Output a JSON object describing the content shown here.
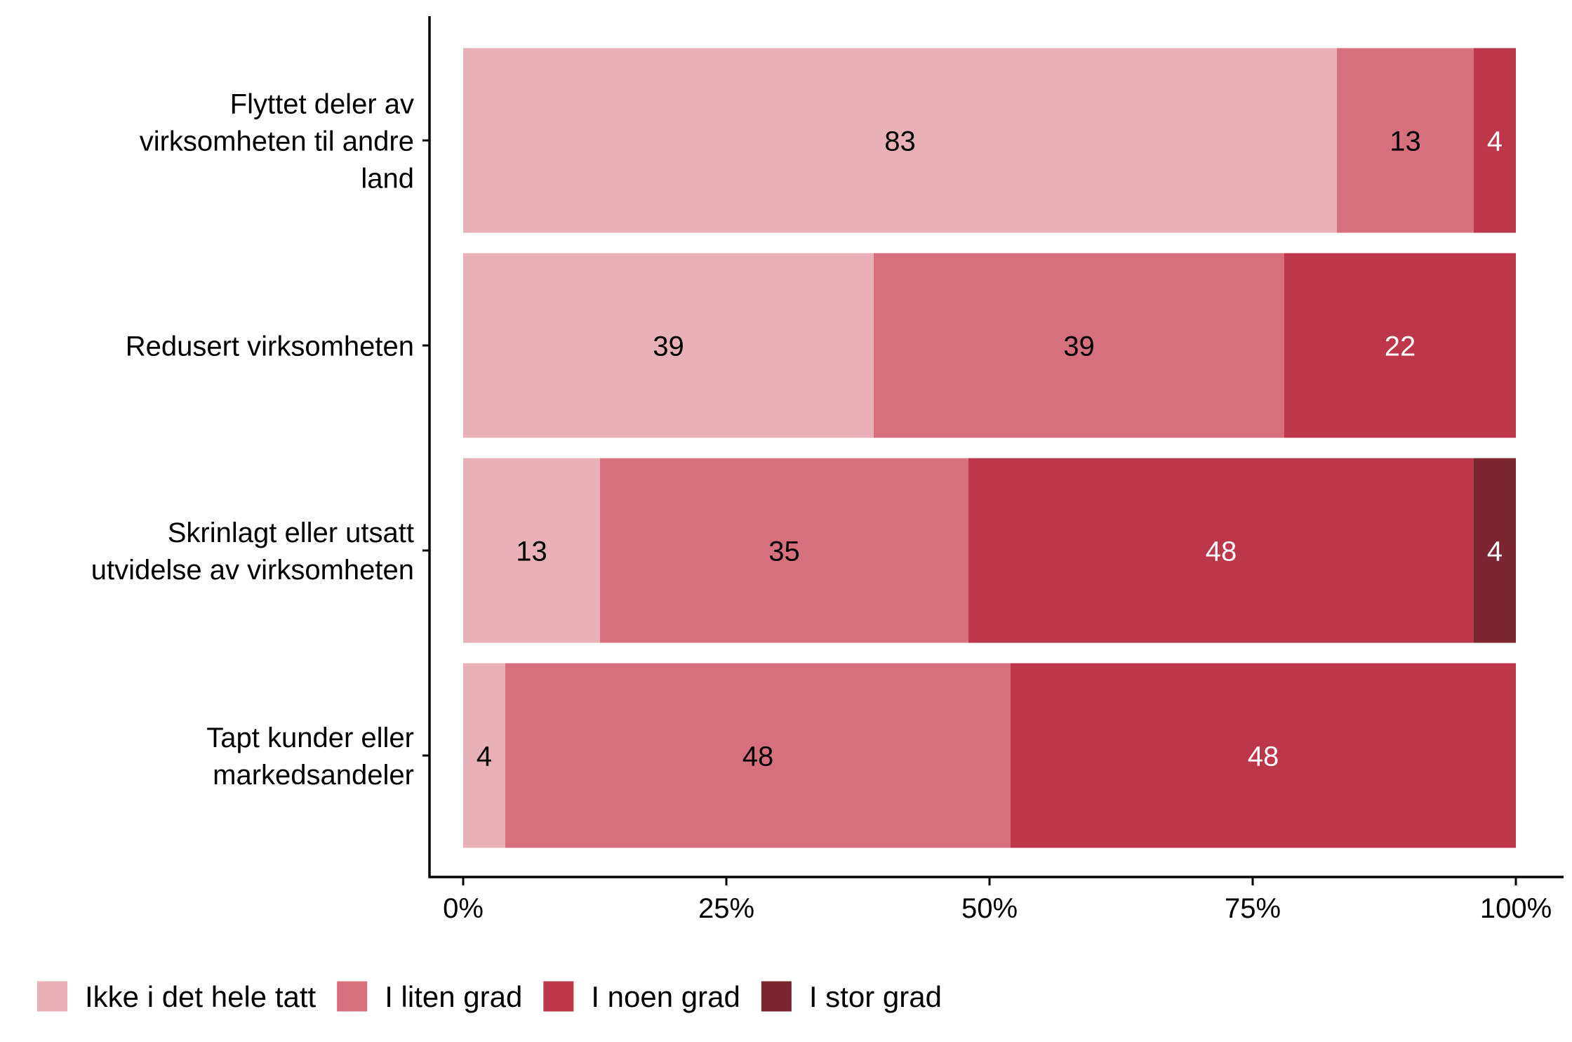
{
  "chart_data": {
    "type": "bar",
    "orientation": "horizontal",
    "stacked": true,
    "title": "",
    "xlabel": "",
    "ylabel": "",
    "xlim": [
      0,
      100
    ],
    "x_ticks": [
      "0%",
      "25%",
      "50%",
      "75%",
      "100%"
    ],
    "x_tick_values": [
      0,
      25,
      50,
      75,
      100
    ],
    "grid": false,
    "legend_position": "bottom",
    "categories": [
      [
        "Flyttet deler av",
        "virksomheten til andre",
        "land"
      ],
      [
        "Redusert virksomheten"
      ],
      [
        "Skrinlagt eller utsatt",
        "utvidelse av virksomheten"
      ],
      [
        "Tapt kunder eller",
        "markedsandeler"
      ]
    ],
    "series": [
      {
        "name": "Ikke i det hele tatt",
        "color": "#E8B1B7",
        "label_color": "#000000",
        "values": [
          83,
          39,
          13,
          4
        ]
      },
      {
        "name": "I liten grad",
        "color": "#D6707D",
        "label_color": "#000000",
        "values": [
          13,
          39,
          35,
          48
        ]
      },
      {
        "name": "I noen grad",
        "color": "#BC374A",
        "label_color": "#FFFFFF",
        "values": [
          4,
          22,
          48,
          48
        ]
      },
      {
        "name": "I stor grad",
        "color": "#7B2631",
        "label_color": "#FFFFFF",
        "values": [
          0,
          0,
          4,
          0
        ]
      }
    ]
  }
}
